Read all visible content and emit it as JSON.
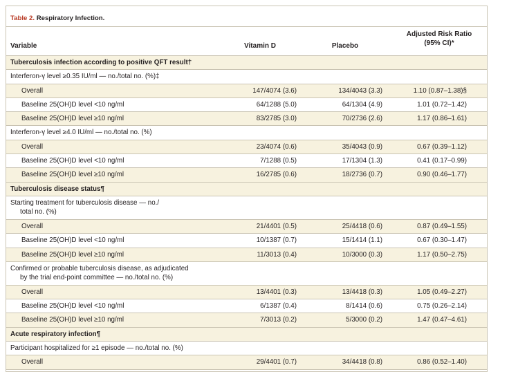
{
  "table": {
    "number": "Table 2.",
    "title": "Respiratory Infection."
  },
  "columns": {
    "variable": "Variable",
    "vitamin_d": "Vitamin D",
    "placebo": "Placebo",
    "ratio_line1": "Adjusted Risk Ratio",
    "ratio_line2": "(95% CI)*"
  },
  "rows": [
    {
      "type": "section",
      "label": "Tuberculosis infection according to positive QFT result†"
    },
    {
      "type": "group",
      "label": "Interferon-γ level ≥0.35 IU/ml — no./total no. (%)‡"
    },
    {
      "type": "sub",
      "label": "Overall",
      "vitamin_d": "147/4074 (3.6)",
      "placebo": "134/4043 (3.3)",
      "ratio": "1.10 (0.87–1.38)§"
    },
    {
      "type": "sub",
      "label": "Baseline 25(OH)D level <10 ng/ml",
      "vitamin_d": "64/1288 (5.0)",
      "placebo": "64/1304 (4.9)",
      "ratio": "1.01 (0.72–1.42)"
    },
    {
      "type": "sub",
      "label": "Baseline 25(OH)D level ≥10 ng/ml",
      "vitamin_d": "83/2785 (3.0)",
      "placebo": "70/2736 (2.6)",
      "ratio": "1.17 (0.86–1.61)"
    },
    {
      "type": "group",
      "label": "Interferon-γ level ≥4.0 IU/ml — no./total no. (%)"
    },
    {
      "type": "sub",
      "label": "Overall",
      "vitamin_d": "23/4074 (0.6)",
      "placebo": "35/4043 (0.9)",
      "ratio": "0.67 (0.39–1.12)"
    },
    {
      "type": "sub",
      "label": "Baseline 25(OH)D level <10 ng/ml",
      "vitamin_d": "7/1288 (0.5)",
      "placebo": "17/1304 (1.3)",
      "ratio": "0.41 (0.17–0.99)"
    },
    {
      "type": "sub",
      "label": "Baseline 25(OH)D level ≥10 ng/ml",
      "vitamin_d": "16/2785 (0.6)",
      "placebo": "18/2736 (0.7)",
      "ratio": "0.90 (0.46–1.77)"
    },
    {
      "type": "section",
      "label": "Tuberculosis disease status¶"
    },
    {
      "type": "group2",
      "line1": "Starting treatment for tuberculosis disease — no./",
      "line2": "total no. (%)"
    },
    {
      "type": "sub",
      "label": "Overall",
      "vitamin_d": "21/4401 (0.5)",
      "placebo": "25/4418 (0.6)",
      "ratio": "0.87 (0.49–1.55)"
    },
    {
      "type": "sub",
      "label": "Baseline 25(OH)D level <10 ng/ml",
      "vitamin_d": "10/1387 (0.7)",
      "placebo": "15/1414 (1.1)",
      "ratio": "0.67 (0.30–1.47)"
    },
    {
      "type": "sub",
      "label": "Baseline 25(OH)D level ≥10 ng/ml",
      "vitamin_d": "11/3013 (0.4)",
      "placebo": "10/3000 (0.3)",
      "ratio": "1.17 (0.50–2.75)"
    },
    {
      "type": "group2",
      "line1": "Confirmed or probable tuberculosis disease, as adjudicated",
      "line2": "by the trial end-point committee — no./total no. (%)"
    },
    {
      "type": "sub",
      "label": "Overall",
      "vitamin_d": "13/4401 (0.3)",
      "placebo": "13/4418 (0.3)",
      "ratio": "1.05 (0.49–2.27)"
    },
    {
      "type": "sub",
      "label": "Baseline 25(OH)D level <10 ng/ml",
      "vitamin_d": "6/1387 (0.4)",
      "placebo": "8/1414 (0.6)",
      "ratio": "0.75 (0.26–2.14)"
    },
    {
      "type": "sub",
      "label": "Baseline 25(OH)D level ≥10 ng/ml",
      "vitamin_d": "7/3013 (0.2)",
      "placebo": "5/3000 (0.2)",
      "ratio": "1.47 (0.47–4.61)"
    },
    {
      "type": "section",
      "label": "Acute respiratory infection¶"
    },
    {
      "type": "group",
      "label": "Participant hospitalized for ≥1 episode — no./total no. (%)"
    },
    {
      "type": "sub",
      "label": "Overall",
      "vitamin_d": "29/4401 (0.7)",
      "placebo": "34/4418 (0.8)",
      "ratio": "0.86 (0.52–1.40)"
    }
  ]
}
